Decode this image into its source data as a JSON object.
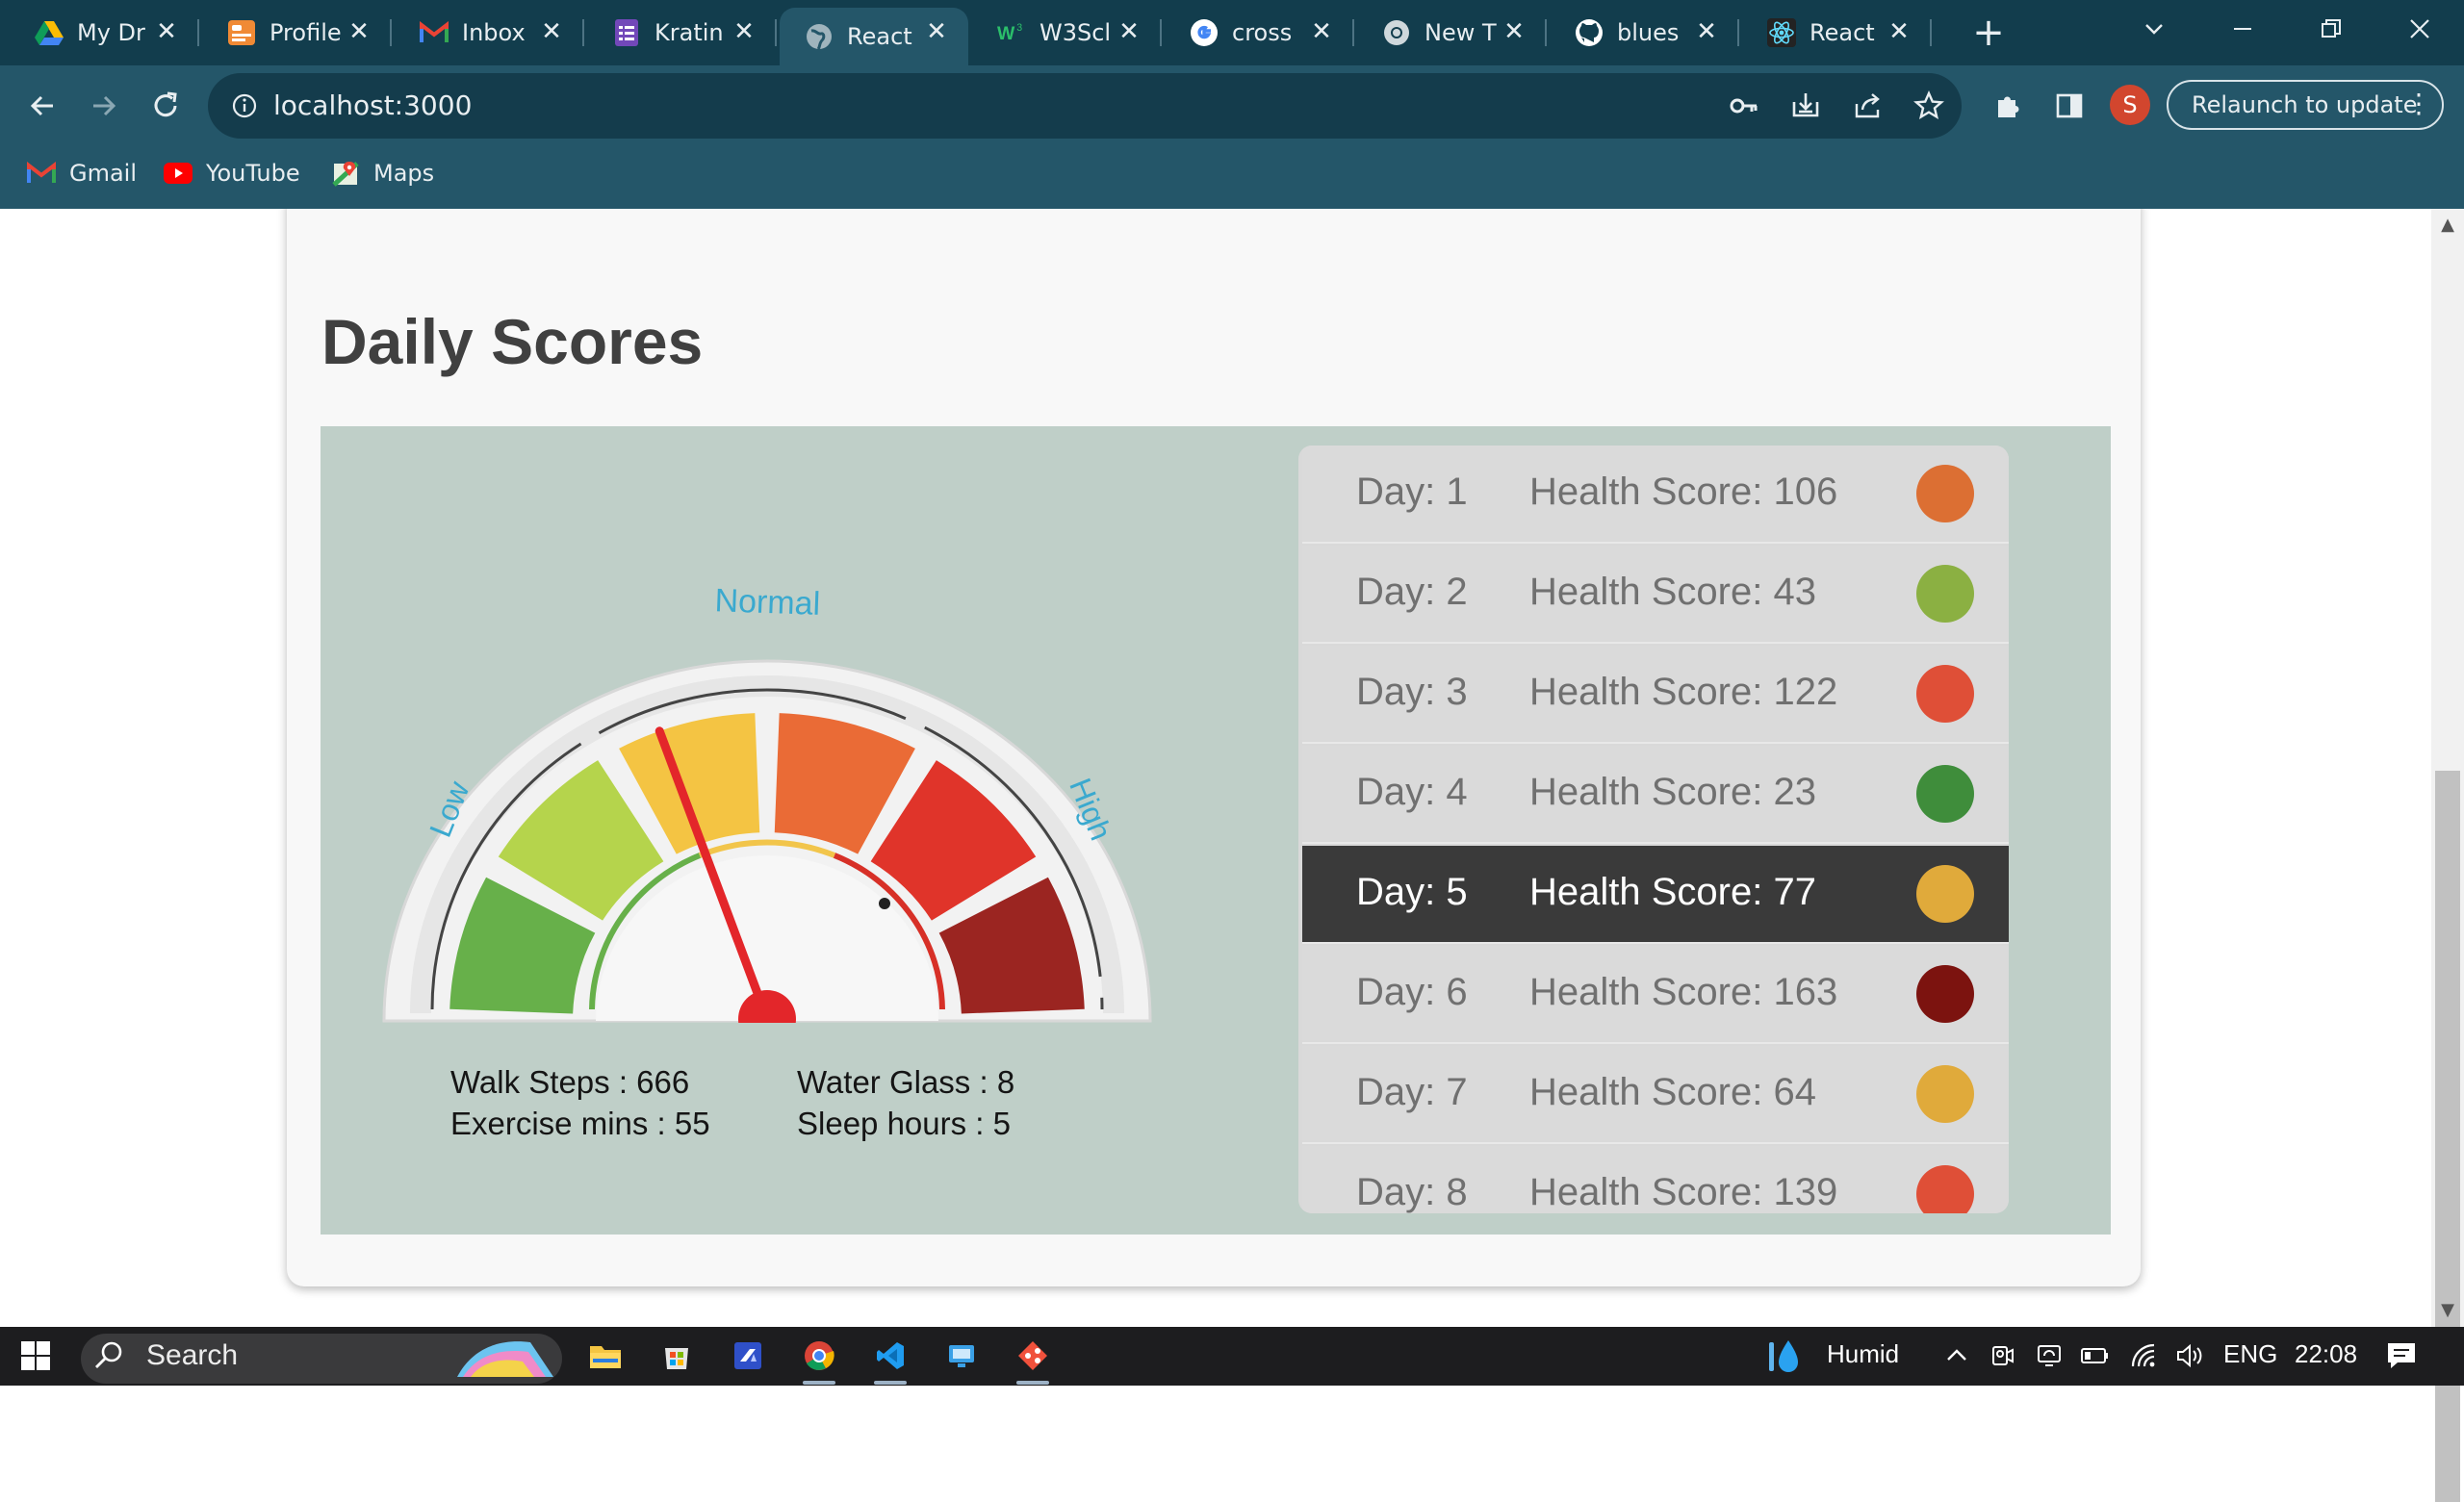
{
  "browser": {
    "tabs": [
      {
        "label": "My Dr",
        "icon": "google-drive-icon",
        "active": false
      },
      {
        "label": "Profile",
        "icon": "profile-card-icon",
        "active": false
      },
      {
        "label": "Inbox",
        "icon": "gmail-icon",
        "active": false
      },
      {
        "label": "Kratin",
        "icon": "forms-icon",
        "active": false
      },
      {
        "label": "React",
        "icon": "globe-icon",
        "active": true
      },
      {
        "label": "W3Scl",
        "icon": "w3schools-icon",
        "active": false
      },
      {
        "label": "cross",
        "icon": "google-icon",
        "active": false
      },
      {
        "label": "New T",
        "icon": "chrome-icon",
        "active": false
      },
      {
        "label": "blues",
        "icon": "github-icon",
        "active": false
      },
      {
        "label": "React",
        "icon": "react-icon",
        "active": false
      }
    ],
    "url": "localhost:3000",
    "profile_initial": "S",
    "relaunch_label": "Relaunch to update",
    "bookmarks": [
      {
        "label": "Gmail",
        "icon": "gmail-icon"
      },
      {
        "label": "YouTube",
        "icon": "youtube-icon"
      },
      {
        "label": "Maps",
        "icon": "maps-icon"
      }
    ]
  },
  "page": {
    "title": "Daily Scores",
    "gauge": {
      "labels": {
        "low": "Low",
        "normal": "Normal",
        "high": "High"
      },
      "needle_value_fraction": 0.39,
      "segment_colors": [
        "#67b04a",
        "#b5d44c",
        "#f4c443",
        "#ea6b36",
        "#e0342a",
        "#9b2521"
      ]
    },
    "metrics": {
      "walk_steps": "Walk Steps : 666",
      "exercise_mins": "Exercise mins : 55",
      "water_glass": "Water Glass : 8",
      "sleep_hours": "Sleep hours : 5"
    },
    "scores": [
      {
        "day": "Day: 1",
        "score": "Health Score: 106",
        "color": "#dc6f33"
      },
      {
        "day": "Day: 2",
        "score": "Health Score: 43",
        "color": "#8bb042"
      },
      {
        "day": "Day: 3",
        "score": "Health Score: 122",
        "color": "#df4f37"
      },
      {
        "day": "Day: 4",
        "score": "Health Score: 23",
        "color": "#3f8d3b"
      },
      {
        "day": "Day: 5",
        "score": "Health Score: 77",
        "color": "#e0aa3b"
      },
      {
        "day": "Day: 6",
        "score": "Health Score: 163",
        "color": "#7c130f"
      },
      {
        "day": "Day: 7",
        "score": "Health Score: 64",
        "color": "#e0aa3b"
      },
      {
        "day": "Day: 8",
        "score": "Health Score: 139",
        "color": "#df4f37"
      }
    ],
    "selected_day": "Day: 5"
  },
  "taskbar": {
    "search_label": "Search",
    "weather": "Humid",
    "language": "ENG",
    "time": "22:08"
  }
}
